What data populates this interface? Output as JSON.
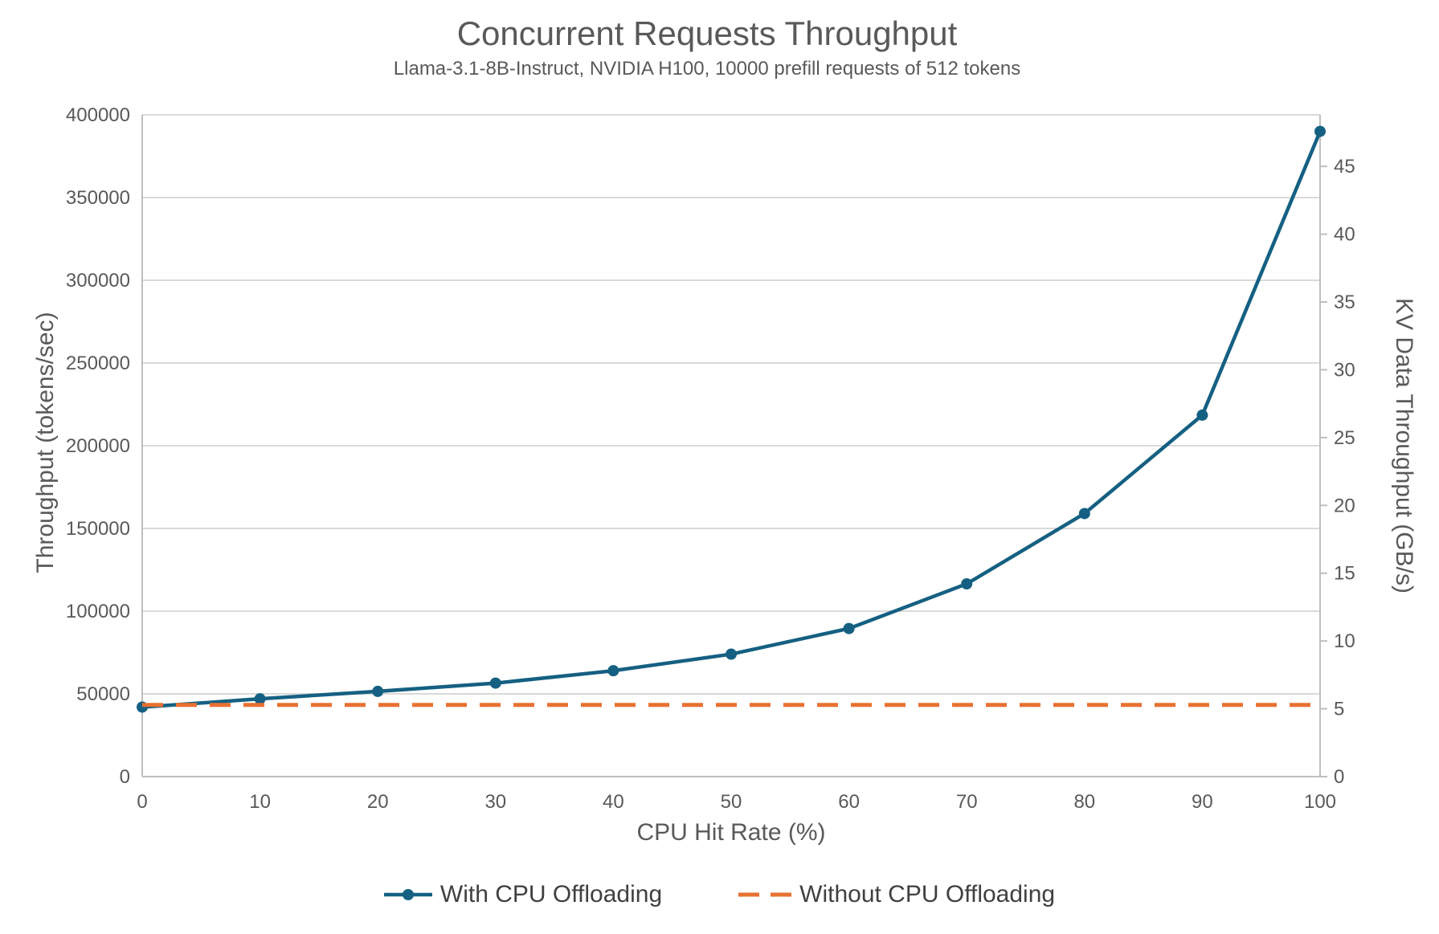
{
  "chart_data": {
    "type": "line",
    "title": "Concurrent Requests Throughput",
    "subtitle": "Llama-3.1-8B-Instruct, NVIDIA H100, 10000 prefill requests of 512 tokens",
    "xlabel": "CPU Hit Rate (%)",
    "ylabel": "Throughput (tokens/sec)",
    "y2label": "KV Data Throughput (GB/s)",
    "x": [
      0,
      10,
      20,
      30,
      40,
      50,
      60,
      70,
      80,
      90,
      100
    ],
    "series": [
      {
        "name": "With CPU Offloading",
        "color": "#156082",
        "dash": "solid",
        "marker": "circle",
        "values": [
          42000,
          47000,
          51500,
          56500,
          64000,
          74000,
          89500,
          116500,
          159000,
          218500,
          390000
        ]
      },
      {
        "name": "Without CPU Offloading",
        "color": "#E97132",
        "dash": "dashed",
        "marker": "none",
        "values": [
          43300,
          43300,
          43300,
          43300,
          43300,
          43300,
          43300,
          43300,
          43300,
          43300,
          43300
        ]
      }
    ],
    "axes": {
      "x": {
        "min": 0,
        "max": 100,
        "ticks": [
          0,
          10,
          20,
          30,
          40,
          50,
          60,
          70,
          80,
          90,
          100
        ]
      },
      "y_left": {
        "min": 0,
        "max": 400000,
        "ticks": [
          0,
          50000,
          100000,
          150000,
          200000,
          250000,
          300000,
          350000,
          400000
        ]
      },
      "y_right": {
        "min": 0,
        "max": 48.8,
        "ticks": [
          0,
          5,
          10,
          15,
          20,
          25,
          30,
          35,
          40,
          45
        ]
      }
    },
    "grid": {
      "horizontal": true,
      "vertical": false
    },
    "legend_position": "bottom",
    "colors": {
      "series_with_offloading": "#156082",
      "series_without_offloading": "#E97132",
      "gridline": "#D9D9D9",
      "axis_line": "#BFBFBF",
      "tick_label": "#595959",
      "title_text": "#595959",
      "legend_text": "#404040"
    }
  }
}
